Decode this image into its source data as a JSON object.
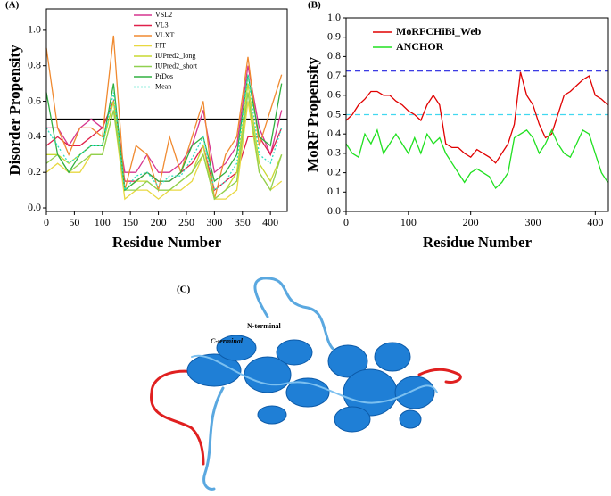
{
  "chart_data": [
    {
      "type": "line",
      "panel_label": "(A)",
      "xlabel": "Residue Number",
      "ylabel": "Disorder Propensity",
      "x": [
        0,
        20,
        40,
        60,
        80,
        100,
        120,
        140,
        160,
        180,
        200,
        220,
        240,
        260,
        280,
        300,
        320,
        340,
        360,
        380,
        400,
        420
      ],
      "series": [
        {
          "name": "VSL2",
          "color": "#d6358f",
          "values": [
            0.45,
            0.45,
            0.35,
            0.45,
            0.5,
            0.45,
            0.6,
            0.2,
            0.2,
            0.3,
            0.2,
            0.2,
            0.25,
            0.35,
            0.55,
            0.2,
            0.25,
            0.35,
            0.8,
            0.45,
            0.3,
            0.55
          ]
        },
        {
          "name": "VL3",
          "color": "#e0204a",
          "values": [
            0.35,
            0.4,
            0.35,
            0.35,
            0.4,
            0.45,
            0.6,
            0.15,
            0.15,
            0.2,
            0.15,
            0.15,
            0.2,
            0.25,
            0.35,
            0.1,
            0.15,
            0.2,
            0.4,
            0.4,
            0.3,
            0.45
          ]
        },
        {
          "name": "VLXT",
          "color": "#f08a30",
          "values": [
            0.9,
            0.45,
            0.3,
            0.45,
            0.45,
            0.4,
            0.97,
            0.1,
            0.35,
            0.3,
            0.1,
            0.4,
            0.2,
            0.4,
            0.6,
            0.05,
            0.3,
            0.4,
            0.85,
            0.35,
            0.55,
            0.75
          ]
        },
        {
          "name": "FIT",
          "color": "#e8d840",
          "values": [
            0.2,
            0.25,
            0.2,
            0.2,
            0.3,
            0.3,
            0.55,
            0.05,
            0.1,
            0.1,
            0.05,
            0.1,
            0.1,
            0.15,
            0.3,
            0.05,
            0.05,
            0.1,
            0.6,
            0.2,
            0.1,
            0.15
          ]
        },
        {
          "name": "IUPred2_long",
          "color": "#c8d830",
          "values": [
            0.3,
            0.3,
            0.25,
            0.3,
            0.35,
            0.35,
            0.6,
            0.1,
            0.15,
            0.15,
            0.1,
            0.1,
            0.15,
            0.2,
            0.35,
            0.05,
            0.1,
            0.2,
            0.7,
            0.25,
            0.15,
            0.3
          ]
        },
        {
          "name": "IUPred2_short",
          "color": "#90d050",
          "values": [
            0.25,
            0.3,
            0.2,
            0.25,
            0.3,
            0.3,
            0.55,
            0.1,
            0.1,
            0.15,
            0.1,
            0.1,
            0.15,
            0.2,
            0.3,
            0.05,
            0.1,
            0.15,
            0.65,
            0.2,
            0.1,
            0.3
          ]
        },
        {
          "name": "PrDos",
          "color": "#30b040",
          "values": [
            0.65,
            0.3,
            0.2,
            0.3,
            0.35,
            0.35,
            0.7,
            0.1,
            0.15,
            0.2,
            0.15,
            0.15,
            0.2,
            0.35,
            0.4,
            0.15,
            0.2,
            0.3,
            0.75,
            0.4,
            0.35,
            0.7
          ]
        },
        {
          "name": "Mean",
          "color": "#30e0c0",
          "style": "dotted",
          "values": [
            0.45,
            0.35,
            0.25,
            0.3,
            0.35,
            0.35,
            0.65,
            0.1,
            0.18,
            0.2,
            0.12,
            0.18,
            0.18,
            0.28,
            0.4,
            0.1,
            0.15,
            0.25,
            0.75,
            0.3,
            0.25,
            0.45
          ]
        }
      ],
      "hlines": [
        {
          "value": 0.5,
          "color": "#000000"
        }
      ],
      "xlim": [
        0,
        430
      ],
      "ylim": [
        -0.02,
        1.12
      ],
      "xticks": [
        0,
        50,
        100,
        150,
        200,
        250,
        300,
        350,
        400
      ],
      "yticks": [
        {
          "value": 0,
          "label": "0.0"
        },
        0.2,
        0.4,
        0.6,
        0.8,
        {
          "value": 1,
          "label": "1.0"
        }
      ]
    },
    {
      "type": "line",
      "panel_label": "(B)",
      "xlabel": "Residue Number",
      "ylabel": "MoRF Propensity",
      "x": [
        0,
        10,
        20,
        30,
        40,
        50,
        60,
        70,
        80,
        90,
        100,
        110,
        120,
        130,
        140,
        150,
        160,
        170,
        180,
        190,
        200,
        210,
        220,
        230,
        240,
        250,
        260,
        270,
        280,
        290,
        300,
        310,
        320,
        330,
        340,
        350,
        360,
        370,
        380,
        390,
        400,
        410,
        420
      ],
      "series": [
        {
          "name": "MoRFCHiBi_Web",
          "color": "#e00000",
          "values": [
            0.47,
            0.5,
            0.55,
            0.58,
            0.62,
            0.62,
            0.6,
            0.6,
            0.57,
            0.55,
            0.52,
            0.5,
            0.47,
            0.55,
            0.6,
            0.55,
            0.35,
            0.33,
            0.33,
            0.3,
            0.28,
            0.32,
            0.3,
            0.28,
            0.25,
            0.3,
            0.35,
            0.45,
            0.72,
            0.6,
            0.55,
            0.45,
            0.38,
            0.4,
            0.5,
            0.6,
            0.62,
            0.65,
            0.68,
            0.7,
            0.6,
            0.58,
            0.55
          ]
        },
        {
          "name": "ANCHOR",
          "color": "#20e020",
          "values": [
            0.35,
            0.3,
            0.28,
            0.4,
            0.35,
            0.42,
            0.3,
            0.35,
            0.4,
            0.35,
            0.3,
            0.38,
            0.3,
            0.4,
            0.35,
            0.38,
            0.3,
            0.25,
            0.2,
            0.15,
            0.2,
            0.22,
            0.2,
            0.18,
            0.12,
            0.15,
            0.2,
            0.38,
            0.4,
            0.42,
            0.38,
            0.3,
            0.35,
            0.42,
            0.35,
            0.3,
            0.28,
            0.35,
            0.42,
            0.4,
            0.3,
            0.2,
            0.15
          ]
        }
      ],
      "hlines": [
        {
          "value": 0.725,
          "color": "#2020e0",
          "dashed": true
        },
        {
          "value": 0.5,
          "color": "#40d8f0",
          "dashed": true
        }
      ],
      "xlim": [
        0,
        421
      ],
      "ylim": [
        0,
        1
      ],
      "xticks": [
        0,
        100,
        200,
        300,
        400
      ],
      "yticks": [
        {
          "value": 0,
          "label": "0.0"
        },
        0.1,
        0.2,
        0.3,
        0.4,
        0.5,
        0.6,
        0.7,
        0.8,
        0.9,
        {
          "value": 1,
          "label": "1.0"
        }
      ]
    }
  ],
  "panel_c": {
    "label": "(C)",
    "annotations": [
      "N-terminal",
      "C-terminal"
    ]
  }
}
